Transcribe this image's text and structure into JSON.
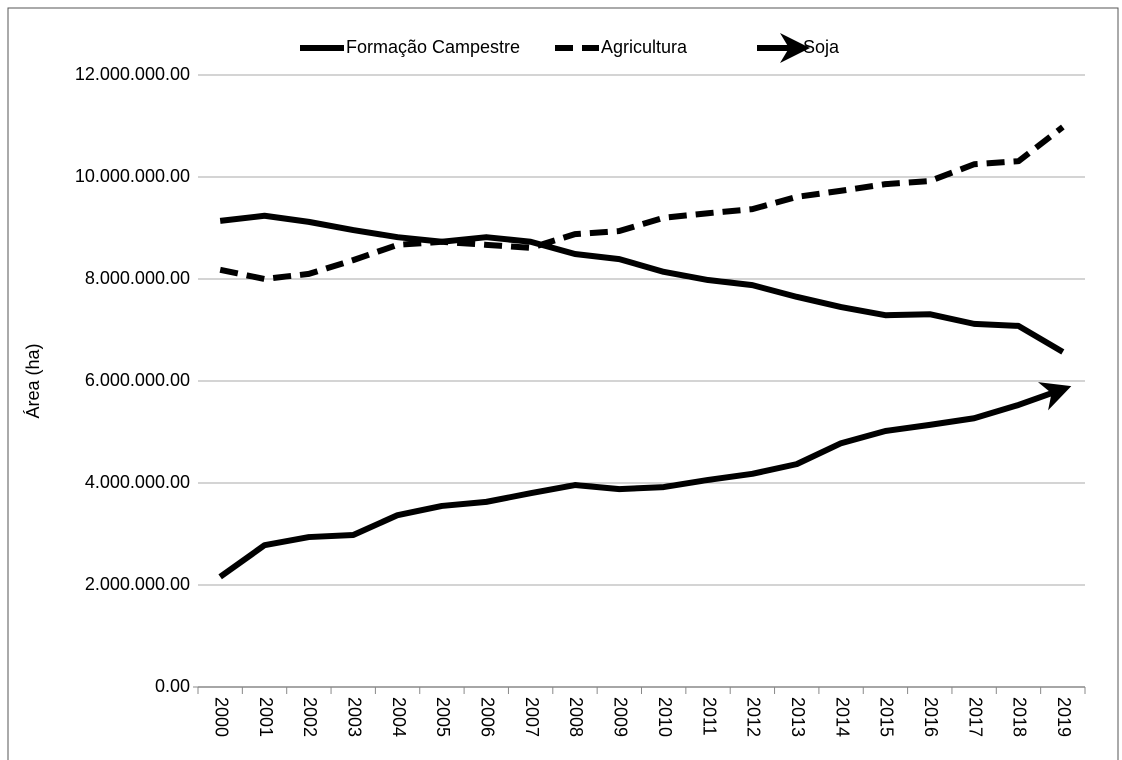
{
  "chart_data": {
    "type": "line",
    "y_label": "Área (ha)",
    "categories": [
      "2000",
      "2001",
      "2002",
      "2003",
      "2004",
      "2005",
      "2006",
      "2007",
      "2008",
      "2009",
      "2010",
      "2011",
      "2012",
      "2013",
      "2014",
      "2015",
      "2016",
      "2017",
      "2018",
      "2019"
    ],
    "series": [
      {
        "name": "Formação Campestre",
        "color": "#000000",
        "line_style": "solid",
        "values": [
          9140000,
          9240000,
          9120000,
          8960000,
          8820000,
          8730000,
          8820000,
          8730000,
          8490000,
          8390000,
          8140000,
          7980000,
          7880000,
          7650000,
          7450000,
          7290000,
          7310000,
          7120000,
          7080000,
          6570000
        ]
      },
      {
        "name": "Agricultura",
        "color": "#000000",
        "line_style": "dashed",
        "values": [
          8180000,
          8000000,
          8100000,
          8370000,
          8670000,
          8730000,
          8670000,
          8610000,
          8880000,
          8940000,
          9200000,
          9290000,
          9370000,
          9610000,
          9730000,
          9860000,
          9920000,
          10250000,
          10310000,
          10980000
        ]
      },
      {
        "name": "Soja",
        "color": "#000000",
        "line_style": "arrow",
        "values": [
          2160000,
          2780000,
          2940000,
          2980000,
          3370000,
          3550000,
          3630000,
          3800000,
          3960000,
          3880000,
          3920000,
          4060000,
          4180000,
          4370000,
          4780000,
          5020000,
          5140000,
          5270000,
          5530000,
          5840000
        ]
      }
    ],
    "ylim": [
      0,
      12000000
    ],
    "yticks": [
      {
        "value": 0,
        "label": "0.00"
      },
      {
        "value": 2000000,
        "label": "2.000.000.00"
      },
      {
        "value": 4000000,
        "label": "4.000.000.00"
      },
      {
        "value": 6000000,
        "label": "6.000.000.00"
      },
      {
        "value": 8000000,
        "label": "8.000.000.00"
      },
      {
        "value": 10000000,
        "label": "10.000.000.00"
      },
      {
        "value": 12000000,
        "label": "12.000.000.00"
      }
    ],
    "grid": true,
    "legend": "top"
  }
}
